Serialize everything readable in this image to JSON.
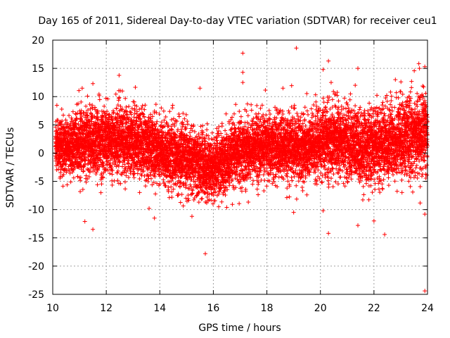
{
  "chart_data": {
    "type": "scatter",
    "title": "Day 165 of 2011, Sidereal Day-to-day VTEC variation (SDTVAR) for receiver ceu1",
    "xlabel": "GPS time / hours",
    "ylabel": "SDTVAR / TECUs",
    "xlim": [
      10,
      24
    ],
    "ylim": [
      -25,
      20
    ],
    "xticks": [
      "10",
      "12",
      "14",
      "16",
      "18",
      "20",
      "22",
      "24"
    ],
    "yticks": [
      "20",
      "15",
      "10",
      "5",
      "0",
      "-5",
      "-10",
      "-15",
      "-20",
      "-25"
    ],
    "grid": true,
    "marker": "plus",
    "color": "#ff0000",
    "series": [
      {
        "name": "SDTVAR",
        "trend": [
          [
            10.1,
            1.5
          ],
          [
            10.5,
            1.0
          ],
          [
            11.0,
            1.8
          ],
          [
            11.5,
            2.2
          ],
          [
            12.0,
            2.0
          ],
          [
            12.5,
            2.5
          ],
          [
            13.0,
            2.2
          ],
          [
            13.5,
            1.5
          ],
          [
            14.0,
            0.5
          ],
          [
            14.5,
            -0.5
          ],
          [
            15.0,
            -1.0
          ],
          [
            15.5,
            -2.0
          ],
          [
            16.0,
            -2.5
          ],
          [
            16.5,
            -1.5
          ],
          [
            17.0,
            0.5
          ],
          [
            17.5,
            1.0
          ],
          [
            18.0,
            1.2
          ],
          [
            18.5,
            1.0
          ],
          [
            19.0,
            1.0
          ],
          [
            19.5,
            0.8
          ],
          [
            20.0,
            1.8
          ],
          [
            20.5,
            2.5
          ],
          [
            21.0,
            2.0
          ],
          [
            21.5,
            1.0
          ],
          [
            22.0,
            1.0
          ],
          [
            22.5,
            2.0
          ],
          [
            23.0,
            2.5
          ],
          [
            23.5,
            3.0
          ],
          [
            24.0,
            3.5
          ]
        ],
        "spread": [
          [
            10.1,
            2.5
          ],
          [
            12.0,
            3.0
          ],
          [
            14.0,
            2.8
          ],
          [
            16.0,
            2.8
          ],
          [
            18.0,
            2.8
          ],
          [
            20.0,
            3.0
          ],
          [
            22.0,
            3.2
          ],
          [
            24.0,
            3.6
          ]
        ],
        "outliers": [
          [
            11.1,
            11.5
          ],
          [
            11.5,
            12.3
          ],
          [
            11.2,
            -12.1
          ],
          [
            11.5,
            -13.5
          ],
          [
            11.8,
            -7.0
          ],
          [
            12.6,
            11.0
          ],
          [
            13.8,
            -11.5
          ],
          [
            13.6,
            -9.8
          ],
          [
            15.5,
            11.5
          ],
          [
            15.2,
            -11.2
          ],
          [
            15.7,
            -17.8
          ],
          [
            16.2,
            -9.5
          ],
          [
            16.5,
            -9.6
          ],
          [
            17.1,
            17.7
          ],
          [
            17.1,
            14.3
          ],
          [
            17.1,
            12.5
          ],
          [
            18.6,
            11.5
          ],
          [
            19.1,
            18.6
          ],
          [
            19.0,
            -10.5
          ],
          [
            20.1,
            14.8
          ],
          [
            20.3,
            16.3
          ],
          [
            20.4,
            12.5
          ],
          [
            20.3,
            -14.2
          ],
          [
            20.1,
            -10.2
          ],
          [
            21.4,
            15.0
          ],
          [
            21.4,
            -12.8
          ],
          [
            22.0,
            -12.0
          ],
          [
            22.4,
            -14.4
          ],
          [
            23.7,
            15.0
          ],
          [
            23.9,
            15.3
          ],
          [
            23.9,
            -24.4
          ],
          [
            23.9,
            -10.8
          ],
          [
            21.3,
            12.0
          ],
          [
            22.8,
            13.0
          ]
        ],
        "count": 9000
      }
    ]
  }
}
